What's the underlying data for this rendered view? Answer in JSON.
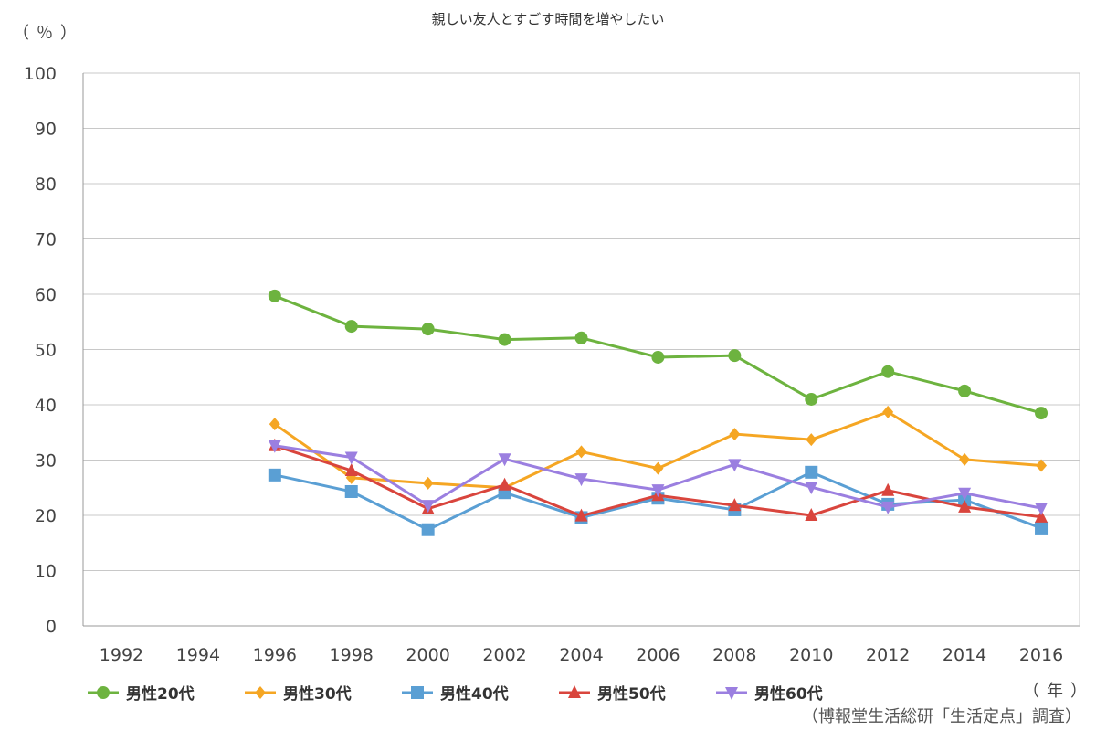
{
  "chart_data": {
    "type": "line",
    "title": "親しい友人とすごす時間を増やしたい",
    "ylabel": "（％）",
    "xlabel": "（年）",
    "source": "（博報堂生活総研「生活定点」調査）",
    "ylim": [
      0,
      100
    ],
    "yticks": [
      0,
      10,
      20,
      30,
      40,
      50,
      60,
      70,
      80,
      90,
      100
    ],
    "categories": [
      "1992",
      "1994",
      "1996",
      "1998",
      "2000",
      "2002",
      "2004",
      "2006",
      "2008",
      "2010",
      "2012",
      "2014",
      "2016"
    ],
    "grid": true,
    "legend_position": "bottom",
    "series": [
      {
        "name": "男性20代",
        "color": "#6db33f",
        "marker": "circle",
        "values": [
          null,
          null,
          59.7,
          54.2,
          53.7,
          51.8,
          52.1,
          48.6,
          48.9,
          41.0,
          46.0,
          42.5,
          38.5
        ]
      },
      {
        "name": "男性30代",
        "color": "#f5a623",
        "marker": "diamond",
        "values": [
          null,
          null,
          36.5,
          26.8,
          25.8,
          25.0,
          31.5,
          28.5,
          34.7,
          33.7,
          38.7,
          30.1,
          29.0
        ]
      },
      {
        "name": "男性40代",
        "color": "#5a9fd4",
        "marker": "square",
        "values": [
          null,
          null,
          27.3,
          24.3,
          17.4,
          24.1,
          19.6,
          23.1,
          21.0,
          27.8,
          22.0,
          22.8,
          17.7
        ]
      },
      {
        "name": "男性50代",
        "color": "#d9453d",
        "marker": "triangle-up",
        "values": [
          null,
          null,
          32.6,
          28.1,
          21.2,
          25.5,
          19.9,
          23.6,
          21.8,
          20.0,
          24.5,
          21.5,
          19.7
        ]
      },
      {
        "name": "男性60代",
        "color": "#9b7fe0",
        "marker": "triangle-down",
        "values": [
          null,
          null,
          32.6,
          30.5,
          21.8,
          30.2,
          26.6,
          24.6,
          29.2,
          25.1,
          21.5,
          24.0,
          21.3
        ]
      }
    ]
  }
}
